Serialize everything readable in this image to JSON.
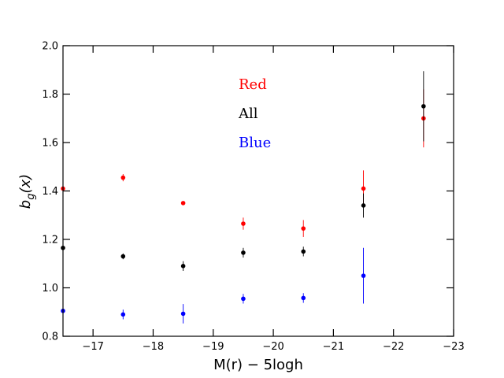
{
  "chart_data": {
    "type": "scatter",
    "title": "",
    "xlabel": "M(r) − 5logh",
    "ylabel_main": "b",
    "ylabel_sub": "g",
    "ylabel_tail": "(x)",
    "xlim": [
      -16.5,
      -23
    ],
    "ylim": [
      0.8,
      2.0
    ],
    "xticks": [
      -17,
      -18,
      -19,
      -20,
      -21,
      -22,
      -23
    ],
    "xtick_labels": [
      "−17",
      "−18",
      "−19",
      "−20",
      "−21",
      "−22",
      "−23"
    ],
    "yticks": [
      0.8,
      1.0,
      1.2,
      1.4,
      1.6,
      1.8,
      2.0
    ],
    "ytick_labels": [
      "0.8",
      "1.0",
      "1.2",
      "1.4",
      "1.6",
      "1.8",
      "2.0"
    ],
    "grid": false,
    "legend_position": "top-center",
    "series": [
      {
        "name": "Red",
        "color": "#ff0000",
        "x": [
          -16.5,
          -17.5,
          -18.5,
          -19.5,
          -20.5,
          -21.5,
          -22.5
        ],
        "y": [
          1.41,
          1.455,
          1.35,
          1.265,
          1.245,
          1.41,
          1.7
        ],
        "err": [
          0.0,
          0.015,
          0.0,
          0.025,
          0.035,
          0.075,
          0.12
        ]
      },
      {
        "name": "All",
        "color": "#000000",
        "x": [
          -16.5,
          -17.5,
          -18.5,
          -19.5,
          -20.5,
          -21.5,
          -22.5
        ],
        "y": [
          1.165,
          1.13,
          1.09,
          1.145,
          1.15,
          1.34,
          1.75
        ],
        "err": [
          0.0,
          0.012,
          0.02,
          0.02,
          0.02,
          0.05,
          0.145
        ]
      },
      {
        "name": "Blue",
        "color": "#0000ff",
        "x": [
          -16.5,
          -17.5,
          -18.5,
          -19.5,
          -20.5,
          -21.5,
          -22.5
        ],
        "y": [
          0.905,
          0.89,
          0.893,
          0.955,
          0.958,
          1.05,
          null
        ],
        "err": [
          0.0,
          0.02,
          0.04,
          0.02,
          0.02,
          0.115,
          null
        ]
      }
    ]
  }
}
